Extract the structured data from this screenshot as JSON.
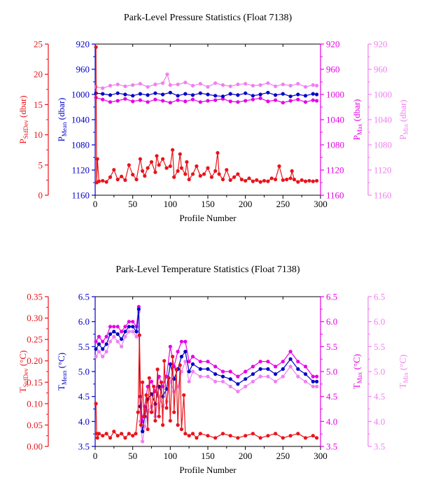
{
  "chart_data": [
    {
      "type": "line",
      "title": "Park-Level Pressure Statistics (Float 7138)",
      "xlabel": "Profile Number",
      "xlim": [
        0,
        300
      ],
      "xticks": [
        0,
        50,
        100,
        150,
        200,
        250,
        300
      ],
      "axes": [
        {
          "id": "stddev",
          "side": "left-outer",
          "color": "#e8141b",
          "label_main": "P",
          "label_sub": "StdDev",
          "label_unit": " (dbar)",
          "ylim": [
            0,
            25
          ],
          "ticks": [
            0,
            5,
            10,
            15,
            20,
            25
          ],
          "inverted": false
        },
        {
          "id": "mean",
          "side": "left-inner",
          "color": "#0000c8",
          "label_main": "P",
          "label_sub": "Mean",
          "label_unit": " (dbar)",
          "ylim": [
            920,
            1160
          ],
          "ticks": [
            920,
            960,
            1000,
            1040,
            1080,
            1120,
            1160
          ],
          "inverted": true
        },
        {
          "id": "max",
          "side": "right-inner",
          "color": "#e600e6",
          "label_main": "P",
          "label_sub": "Max",
          "label_unit": " (dbar)",
          "ylim": [
            920,
            1160
          ],
          "ticks": [
            920,
            960,
            1000,
            1040,
            1080,
            1120,
            1160
          ],
          "inverted": true
        },
        {
          "id": "min",
          "side": "right-outer",
          "color": "#f080f0",
          "label_main": "P",
          "label_sub": "Min",
          "label_unit": " (dbar)",
          "ylim": [
            920,
            1160
          ],
          "ticks": [
            920,
            960,
            1000,
            1040,
            1080,
            1120,
            1160
          ],
          "inverted": true
        }
      ],
      "series": [
        {
          "axis": "min",
          "color": "#f080f0",
          "x": [
            1,
            10,
            20,
            30,
            40,
            50,
            60,
            70,
            80,
            90,
            96,
            100,
            110,
            120,
            130,
            140,
            150,
            160,
            170,
            180,
            190,
            200,
            210,
            220,
            230,
            240,
            250,
            260,
            270,
            280,
            290,
            295
          ],
          "y": [
            988,
            990,
            986,
            984,
            987,
            985,
            983,
            988,
            984,
            982,
            968,
            985,
            984,
            981,
            986,
            983,
            988,
            982,
            985,
            987,
            984,
            983,
            986,
            985,
            982,
            987,
            984,
            986,
            983,
            988,
            985,
            986
          ]
        },
        {
          "axis": "max",
          "color": "#e600e6",
          "x": [
            1,
            10,
            20,
            30,
            40,
            50,
            60,
            70,
            80,
            90,
            100,
            110,
            120,
            130,
            140,
            150,
            160,
            170,
            180,
            190,
            200,
            210,
            220,
            230,
            240,
            250,
            260,
            270,
            280,
            290,
            295
          ],
          "y": [
            1005,
            1008,
            1012,
            1010,
            1007,
            1011,
            1009,
            1012,
            1008,
            1010,
            1013,
            1009,
            1011,
            1008,
            1012,
            1010,
            1009,
            1007,
            1011,
            1012,
            1010,
            1008,
            1006,
            1011,
            1009,
            1013,
            1010,
            1008,
            1012,
            1009,
            1010
          ]
        },
        {
          "axis": "mean",
          "color": "#0000c8",
          "x": [
            1,
            10,
            20,
            30,
            40,
            50,
            60,
            70,
            80,
            90,
            100,
            110,
            120,
            130,
            140,
            150,
            160,
            170,
            180,
            190,
            200,
            210,
            220,
            230,
            240,
            250,
            260,
            270,
            280,
            290,
            295
          ],
          "y": [
            998,
            999,
            1001,
            998,
            1000,
            1002,
            999,
            1001,
            998,
            1000,
            997,
            1002,
            999,
            1001,
            998,
            1000,
            1002,
            1003,
            999,
            1001,
            998,
            1002,
            1000,
            997,
            1001,
            999,
            1003,
            1000,
            1002,
            999,
            1000
          ]
        },
        {
          "axis": "stddev",
          "color": "#e8141b",
          "x": [
            1,
            2,
            3,
            5,
            10,
            15,
            20,
            25,
            30,
            35,
            40,
            45,
            50,
            55,
            60,
            63,
            66,
            70,
            75,
            80,
            82,
            85,
            90,
            95,
            100,
            103,
            105,
            110,
            113,
            115,
            120,
            122,
            125,
            130,
            135,
            140,
            145,
            150,
            155,
            160,
            163,
            165,
            170,
            175,
            180,
            185,
            190,
            195,
            200,
            205,
            210,
            215,
            220,
            225,
            230,
            235,
            240,
            245,
            250,
            255,
            260,
            262,
            265,
            270,
            275,
            280,
            285,
            290,
            295
          ],
          "y": [
            24.5,
            2.1,
            6.0,
            2.3,
            2.4,
            2.2,
            3.0,
            4.2,
            2.6,
            3.1,
            2.5,
            5.0,
            3.4,
            2.6,
            6.0,
            4.0,
            3.2,
            4.5,
            5.5,
            3.8,
            6.5,
            5.0,
            6.0,
            4.5,
            4.8,
            7.5,
            3.0,
            4.0,
            6.8,
            4.5,
            3.5,
            5.5,
            2.6,
            3.5,
            4.8,
            3.2,
            3.5,
            4.5,
            3.0,
            4.0,
            7.0,
            3.5,
            2.6,
            4.2,
            2.5,
            3.0,
            3.5,
            2.6,
            2.4,
            2.8,
            2.3,
            2.5,
            2.2,
            2.4,
            2.3,
            2.8,
            2.6,
            4.8,
            2.5,
            2.6,
            2.8,
            4.0,
            2.6,
            2.2,
            2.5,
            2.3,
            2.4,
            2.3,
            2.4
          ]
        }
      ]
    },
    {
      "type": "line",
      "title": "Park-Level Temperature Statistics (Float 7138)",
      "xlabel": "Profile Number",
      "xlim": [
        0,
        300
      ],
      "xticks": [
        0,
        50,
        100,
        150,
        200,
        250,
        300
      ],
      "axes": [
        {
          "id": "stddev",
          "side": "left-outer",
          "color": "#e8141b",
          "label_main": "T",
          "label_sub": "StdDev",
          "label_unit": " (°C)",
          "ylim": [
            0,
            0.35
          ],
          "ticks": [
            "0.00",
            "0.05",
            "0.10",
            "0.15",
            "0.20",
            "0.25",
            "0.30",
            "0.35"
          ],
          "inverted": false
        },
        {
          "id": "mean",
          "side": "left-inner",
          "color": "#0000c8",
          "label_main": "T",
          "label_sub": "Mean",
          "label_unit": " (°C)",
          "ylim": [
            3.5,
            6.5
          ],
          "ticks": [
            "3.5",
            "4.0",
            "4.5",
            "5.0",
            "5.5",
            "6.0",
            "6.5"
          ],
          "inverted": false
        },
        {
          "id": "max",
          "side": "right-inner",
          "color": "#e600e6",
          "label_main": "T",
          "label_sub": "Max",
          "label_unit": " (°C)",
          "ylim": [
            3.5,
            6.5
          ],
          "ticks": [
            "3.5",
            "4.0",
            "4.5",
            "5.0",
            "5.5",
            "6.0",
            "6.5"
          ],
          "inverted": false
        },
        {
          "id": "min",
          "side": "right-outer",
          "color": "#f080f0",
          "label_main": "T",
          "label_sub": "Min",
          "label_unit": " (°C)",
          "ylim": [
            3.5,
            6.5
          ],
          "ticks": [
            "3.5",
            "4.0",
            "4.5",
            "5.0",
            "5.5",
            "6.0",
            "6.5"
          ],
          "inverted": false
        }
      ],
      "series": [
        {
          "axis": "min",
          "color": "#f080f0",
          "x": [
            1,
            5,
            10,
            15,
            20,
            25,
            30,
            35,
            40,
            45,
            50,
            55,
            58,
            60,
            63,
            66,
            70,
            75,
            80,
            85,
            90,
            95,
            100,
            105,
            110,
            115,
            120,
            125,
            130,
            140,
            150,
            160,
            170,
            180,
            190,
            200,
            210,
            220,
            230,
            240,
            250,
            260,
            270,
            280,
            290,
            295
          ],
          "y": [
            5.3,
            5.4,
            5.3,
            5.4,
            5.6,
            5.7,
            5.6,
            5.5,
            5.7,
            5.8,
            5.8,
            5.7,
            6.2,
            4.0,
            3.6,
            3.9,
            4.2,
            4.3,
            4.1,
            4.5,
            4.3,
            4.4,
            4.8,
            4.6,
            4.7,
            5.0,
            5.2,
            4.8,
            5.0,
            4.9,
            4.9,
            4.8,
            4.8,
            4.7,
            4.6,
            4.7,
            4.8,
            4.9,
            4.9,
            4.8,
            4.9,
            5.1,
            4.9,
            4.8,
            4.7,
            4.7
          ]
        },
        {
          "axis": "max",
          "color": "#e600e6",
          "x": [
            1,
            5,
            10,
            15,
            20,
            25,
            30,
            35,
            40,
            45,
            50,
            55,
            58,
            60,
            63,
            66,
            70,
            75,
            80,
            85,
            90,
            95,
            100,
            105,
            110,
            115,
            120,
            125,
            130,
            140,
            150,
            160,
            170,
            180,
            190,
            200,
            210,
            220,
            230,
            240,
            250,
            260,
            270,
            280,
            290,
            295
          ],
          "y": [
            5.6,
            5.7,
            5.6,
            5.7,
            5.9,
            5.9,
            5.9,
            5.8,
            5.9,
            6.0,
            6.0,
            5.9,
            6.3,
            4.5,
            4.0,
            4.3,
            4.7,
            4.8,
            4.6,
            4.9,
            4.7,
            4.9,
            5.5,
            5.1,
            5.4,
            5.6,
            5.6,
            5.2,
            5.3,
            5.2,
            5.2,
            5.1,
            5.0,
            5.0,
            4.9,
            5.0,
            5.1,
            5.2,
            5.2,
            5.1,
            5.2,
            5.4,
            5.2,
            5.1,
            4.9,
            4.9
          ]
        },
        {
          "axis": "mean",
          "color": "#0000c8",
          "x": [
            1,
            5,
            10,
            15,
            20,
            25,
            30,
            35,
            40,
            45,
            50,
            55,
            58,
            60,
            63,
            66,
            70,
            75,
            80,
            85,
            90,
            95,
            100,
            105,
            110,
            115,
            120,
            125,
            130,
            140,
            150,
            160,
            170,
            180,
            190,
            200,
            210,
            220,
            230,
            240,
            250,
            260,
            270,
            280,
            290,
            295
          ],
          "y": [
            5.45,
            5.55,
            5.45,
            5.55,
            5.75,
            5.8,
            5.75,
            5.65,
            5.8,
            5.9,
            5.9,
            5.8,
            6.25,
            4.3,
            3.8,
            4.1,
            4.45,
            4.55,
            4.35,
            4.7,
            4.5,
            4.65,
            5.15,
            4.85,
            5.05,
            5.3,
            5.4,
            5.0,
            5.15,
            5.05,
            5.05,
            4.95,
            4.9,
            4.85,
            4.75,
            4.85,
            4.95,
            5.05,
            5.05,
            4.95,
            5.05,
            5.25,
            5.05,
            4.95,
            4.8,
            4.8
          ]
        },
        {
          "axis": "stddev",
          "color": "#e8141b",
          "x": [
            1,
            2,
            3,
            5,
            10,
            15,
            20,
            25,
            30,
            35,
            40,
            45,
            50,
            54,
            57,
            59,
            61,
            63,
            65,
            68,
            70,
            72,
            75,
            78,
            80,
            83,
            85,
            88,
            90,
            92,
            95,
            98,
            100,
            103,
            105,
            108,
            110,
            113,
            115,
            118,
            120,
            125,
            130,
            135,
            140,
            150,
            160,
            170,
            180,
            190,
            200,
            210,
            220,
            230,
            240,
            250,
            260,
            270,
            280,
            290,
            295
          ],
          "y": [
            0.1,
            0.03,
            0.02,
            0.03,
            0.025,
            0.03,
            0.02,
            0.035,
            0.025,
            0.03,
            0.02,
            0.03,
            0.025,
            0.03,
            0.08,
            0.26,
            0.05,
            0.15,
            0.07,
            0.12,
            0.04,
            0.16,
            0.08,
            0.14,
            0.06,
            0.18,
            0.07,
            0.15,
            0.05,
            0.2,
            0.09,
            0.16,
            0.06,
            0.21,
            0.08,
            0.18,
            0.05,
            0.19,
            0.04,
            0.12,
            0.03,
            0.025,
            0.03,
            0.02,
            0.03,
            0.025,
            0.02,
            0.03,
            0.025,
            0.02,
            0.025,
            0.03,
            0.02,
            0.025,
            0.03,
            0.02,
            0.025,
            0.03,
            0.02,
            0.025,
            0.02
          ]
        }
      ]
    }
  ]
}
